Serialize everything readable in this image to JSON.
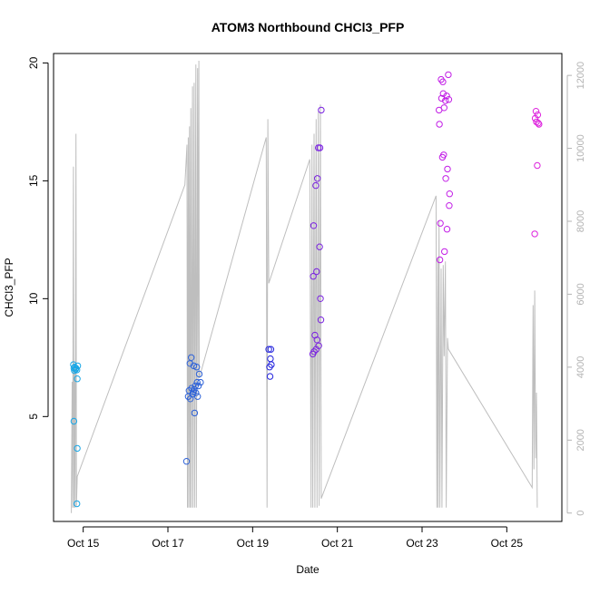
{
  "chart_data": {
    "type": "scatter",
    "title": "ATOM3 Northbound CHCl3_PFP",
    "xlabel": "Date",
    "ylabel": "CHCl3_PFP",
    "x_unit": "day of October",
    "xlim": [
      14.3,
      26.3
    ],
    "ylim": [
      0.55,
      20.4
    ],
    "y2lim": [
      -230,
      12600
    ],
    "x_ticks": [
      15,
      17,
      19,
      21,
      23,
      25
    ],
    "x_tick_labels": [
      "Oct 15",
      "Oct 17",
      "Oct 19",
      "Oct 21",
      "Oct 23",
      "Oct 25"
    ],
    "y_ticks": [
      5,
      10,
      15,
      20
    ],
    "y_tick_labels": [
      "5",
      "10",
      "15",
      "20"
    ],
    "y2_ticks": [
      0,
      2000,
      4000,
      6000,
      8000,
      10000,
      12000
    ],
    "y2_tick_labels": [
      "0",
      "2000",
      "4000",
      "6000",
      "8000",
      "10000",
      "12000"
    ],
    "grid": false,
    "legend": "none",
    "colors": {
      "altitude_line": "#bebebe",
      "right_axis": "#b3b3b3",
      "axis": "#000000",
      "point_oct15": "#1aa7e6",
      "point_oct17": "#2e62d8",
      "point_oct19": "#2222dd",
      "point_oct21": "#7a22e0",
      "point_oct23": "#c21ee6",
      "point_oct25": "#dd22dd"
    },
    "points": [
      {
        "x": 14.77,
        "y": 7.2,
        "c": "#1aa7e6"
      },
      {
        "x": 14.78,
        "y": 7.05,
        "c": "#1aa7e6"
      },
      {
        "x": 14.79,
        "y": 6.95,
        "c": "#1aa7e6"
      },
      {
        "x": 14.8,
        "y": 7.1,
        "c": "#1aa7e6"
      },
      {
        "x": 14.82,
        "y": 7.0,
        "c": "#1aa7e6"
      },
      {
        "x": 14.83,
        "y": 7.05,
        "c": "#1aa7e6"
      },
      {
        "x": 14.85,
        "y": 6.98,
        "c": "#1aa7e6"
      },
      {
        "x": 14.87,
        "y": 7.15,
        "c": "#1aa7e6"
      },
      {
        "x": 14.78,
        "y": 4.8,
        "c": "#1aa7e6"
      },
      {
        "x": 14.86,
        "y": 6.6,
        "c": "#1aa7e6"
      },
      {
        "x": 14.86,
        "y": 3.65,
        "c": "#1aa7e6"
      },
      {
        "x": 14.85,
        "y": 1.3,
        "c": "#1aa7e6"
      },
      {
        "x": 17.44,
        "y": 3.1,
        "c": "#2e62d8"
      },
      {
        "x": 17.48,
        "y": 5.85,
        "c": "#2e62d8"
      },
      {
        "x": 17.5,
        "y": 6.1,
        "c": "#2e62d8"
      },
      {
        "x": 17.52,
        "y": 7.25,
        "c": "#2e62d8"
      },
      {
        "x": 17.53,
        "y": 5.75,
        "c": "#2e62d8"
      },
      {
        "x": 17.55,
        "y": 7.5,
        "c": "#2e62d8"
      },
      {
        "x": 17.56,
        "y": 6.2,
        "c": "#2e62d8"
      },
      {
        "x": 17.58,
        "y": 5.95,
        "c": "#2e62d8"
      },
      {
        "x": 17.6,
        "y": 6.05,
        "c": "#2e62d8"
      },
      {
        "x": 17.61,
        "y": 7.15,
        "c": "#2e62d8"
      },
      {
        "x": 17.62,
        "y": 6.15,
        "c": "#2e62d8"
      },
      {
        "x": 17.63,
        "y": 5.15,
        "c": "#2e62d8"
      },
      {
        "x": 17.65,
        "y": 6.3,
        "c": "#2e62d8"
      },
      {
        "x": 17.66,
        "y": 6.0,
        "c": "#2e62d8"
      },
      {
        "x": 17.68,
        "y": 7.1,
        "c": "#2e62d8"
      },
      {
        "x": 17.69,
        "y": 6.45,
        "c": "#2e62d8"
      },
      {
        "x": 17.7,
        "y": 5.85,
        "c": "#2e62d8"
      },
      {
        "x": 17.72,
        "y": 6.3,
        "c": "#2e62d8"
      },
      {
        "x": 17.74,
        "y": 6.8,
        "c": "#2e62d8"
      },
      {
        "x": 17.77,
        "y": 6.45,
        "c": "#2e62d8"
      },
      {
        "x": 19.38,
        "y": 7.85,
        "c": "#2222dd"
      },
      {
        "x": 19.4,
        "y": 7.1,
        "c": "#2222dd"
      },
      {
        "x": 19.41,
        "y": 6.7,
        "c": "#2222dd"
      },
      {
        "x": 19.42,
        "y": 7.45,
        "c": "#2222dd"
      },
      {
        "x": 19.43,
        "y": 7.85,
        "c": "#2222dd"
      },
      {
        "x": 19.44,
        "y": 7.2,
        "c": "#2222dd"
      },
      {
        "x": 20.42,
        "y": 7.65,
        "c": "#7a22e0"
      },
      {
        "x": 20.43,
        "y": 10.95,
        "c": "#7a22e0"
      },
      {
        "x": 20.44,
        "y": 13.1,
        "c": "#7a22e0"
      },
      {
        "x": 20.45,
        "y": 7.75,
        "c": "#7a22e0"
      },
      {
        "x": 20.47,
        "y": 8.45,
        "c": "#7a22e0"
      },
      {
        "x": 20.49,
        "y": 14.8,
        "c": "#7a22e0"
      },
      {
        "x": 20.5,
        "y": 7.85,
        "c": "#7a22e0"
      },
      {
        "x": 20.51,
        "y": 11.15,
        "c": "#7a22e0"
      },
      {
        "x": 20.52,
        "y": 8.25,
        "c": "#7a22e0"
      },
      {
        "x": 20.53,
        "y": 15.1,
        "c": "#7a22e0"
      },
      {
        "x": 20.55,
        "y": 16.4,
        "c": "#7a22e0"
      },
      {
        "x": 20.56,
        "y": 8.0,
        "c": "#7a22e0"
      },
      {
        "x": 20.58,
        "y": 12.2,
        "c": "#7a22e0"
      },
      {
        "x": 20.59,
        "y": 16.4,
        "c": "#7a22e0"
      },
      {
        "x": 20.6,
        "y": 10.0,
        "c": "#7a22e0"
      },
      {
        "x": 20.61,
        "y": 9.1,
        "c": "#7a22e0"
      },
      {
        "x": 20.62,
        "y": 18.0,
        "c": "#7a22e0"
      },
      {
        "x": 23.4,
        "y": 18.0,
        "c": "#c21ee6"
      },
      {
        "x": 23.41,
        "y": 17.4,
        "c": "#c21ee6"
      },
      {
        "x": 23.42,
        "y": 11.65,
        "c": "#c21ee6"
      },
      {
        "x": 23.43,
        "y": 13.2,
        "c": "#c21ee6"
      },
      {
        "x": 23.45,
        "y": 19.3,
        "c": "#c21ee6"
      },
      {
        "x": 23.46,
        "y": 18.5,
        "c": "#c21ee6"
      },
      {
        "x": 23.48,
        "y": 16.0,
        "c": "#c21ee6"
      },
      {
        "x": 23.49,
        "y": 19.2,
        "c": "#c21ee6"
      },
      {
        "x": 23.5,
        "y": 18.7,
        "c": "#c21ee6"
      },
      {
        "x": 23.51,
        "y": 16.1,
        "c": "#c21ee6"
      },
      {
        "x": 23.52,
        "y": 18.1,
        "c": "#c21ee6"
      },
      {
        "x": 23.53,
        "y": 12.0,
        "c": "#c21ee6"
      },
      {
        "x": 23.55,
        "y": 18.4,
        "c": "#c21ee6"
      },
      {
        "x": 23.56,
        "y": 15.1,
        "c": "#c21ee6"
      },
      {
        "x": 23.58,
        "y": 18.6,
        "c": "#c21ee6"
      },
      {
        "x": 23.59,
        "y": 12.95,
        "c": "#c21ee6"
      },
      {
        "x": 23.6,
        "y": 15.5,
        "c": "#c21ee6"
      },
      {
        "x": 23.62,
        "y": 19.5,
        "c": "#c21ee6"
      },
      {
        "x": 23.63,
        "y": 18.45,
        "c": "#c21ee6"
      },
      {
        "x": 23.64,
        "y": 13.95,
        "c": "#c21ee6"
      },
      {
        "x": 23.65,
        "y": 14.45,
        "c": "#c21ee6"
      },
      {
        "x": 25.66,
        "y": 12.75,
        "c": "#dd22dd"
      },
      {
        "x": 25.67,
        "y": 17.65,
        "c": "#dd22dd"
      },
      {
        "x": 25.69,
        "y": 17.95,
        "c": "#dd22dd"
      },
      {
        "x": 25.7,
        "y": 17.5,
        "c": "#dd22dd"
      },
      {
        "x": 25.72,
        "y": 15.65,
        "c": "#dd22dd"
      },
      {
        "x": 25.73,
        "y": 17.8,
        "c": "#dd22dd"
      },
      {
        "x": 25.74,
        "y": 17.45,
        "c": "#dd22dd"
      },
      {
        "x": 25.76,
        "y": 17.4,
        "c": "#dd22dd"
      }
    ],
    "altitude_line": [
      [
        14.72,
        0
      ],
      [
        14.74,
        3600
      ],
      [
        14.75,
        150
      ],
      [
        14.77,
        9500
      ],
      [
        14.78,
        150
      ],
      [
        14.8,
        4000
      ],
      [
        14.81,
        150
      ],
      [
        14.83,
        10400
      ],
      [
        14.84,
        200
      ],
      [
        14.86,
        1000
      ],
      [
        17.4,
        9000
      ],
      [
        17.45,
        10100
      ],
      [
        17.46,
        150
      ],
      [
        17.48,
        10300
      ],
      [
        17.49,
        150
      ],
      [
        17.51,
        10600
      ],
      [
        17.52,
        150
      ],
      [
        17.54,
        11100
      ],
      [
        17.55,
        150
      ],
      [
        17.58,
        11700
      ],
      [
        17.59,
        150
      ],
      [
        17.62,
        11800
      ],
      [
        17.63,
        150
      ],
      [
        17.66,
        12300
      ],
      [
        17.67,
        150
      ],
      [
        17.7,
        12200
      ],
      [
        17.71,
        3500
      ],
      [
        17.73,
        12400
      ],
      [
        17.74,
        3700
      ],
      [
        19.32,
        10300
      ],
      [
        19.34,
        150
      ],
      [
        19.36,
        10800
      ],
      [
        19.38,
        6300
      ],
      [
        20.35,
        9700
      ],
      [
        20.38,
        150
      ],
      [
        20.4,
        10100
      ],
      [
        20.42,
        150
      ],
      [
        20.45,
        10400
      ],
      [
        20.47,
        150
      ],
      [
        20.5,
        10800
      ],
      [
        20.52,
        150
      ],
      [
        20.55,
        11000
      ],
      [
        20.57,
        200
      ],
      [
        20.6,
        11200
      ],
      [
        20.62,
        400
      ],
      [
        23.33,
        8700
      ],
      [
        23.35,
        150
      ],
      [
        23.37,
        7000
      ],
      [
        23.38,
        150
      ],
      [
        23.4,
        8000
      ],
      [
        23.42,
        150
      ],
      [
        23.45,
        6700
      ],
      [
        23.47,
        150
      ],
      [
        23.5,
        6800
      ],
      [
        23.52,
        4300
      ],
      [
        23.55,
        6900
      ],
      [
        23.57,
        150
      ],
      [
        23.6,
        4800
      ],
      [
        23.62,
        4500
      ],
      [
        25.6,
        700
      ],
      [
        25.62,
        5700
      ],
      [
        25.64,
        1200
      ],
      [
        25.66,
        6100
      ],
      [
        25.68,
        1500
      ],
      [
        25.7,
        3300
      ],
      [
        25.72,
        150
      ]
    ]
  }
}
